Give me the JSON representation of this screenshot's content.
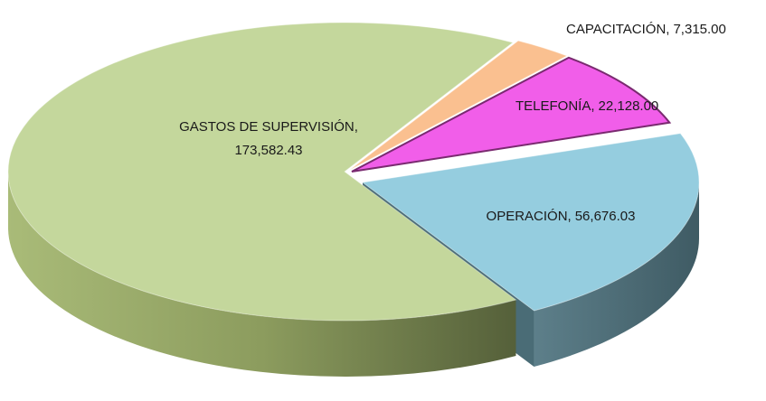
{
  "chart_data": {
    "type": "pie",
    "categories": [
      "CAPACITACIÓN",
      "TELEFONÍA",
      "OPERACIÓN",
      "GASTOS DE SUPERVISIÓN"
    ],
    "values": [
      7315.0,
      22128.0,
      56676.03,
      173582.43
    ],
    "value_labels": [
      "7,315.00",
      "22,128.00",
      "56,676.03",
      "173,582.43"
    ],
    "colors": [
      "#fac090",
      "#f15ee9",
      "#95cddf",
      "#c4d79c"
    ]
  }
}
